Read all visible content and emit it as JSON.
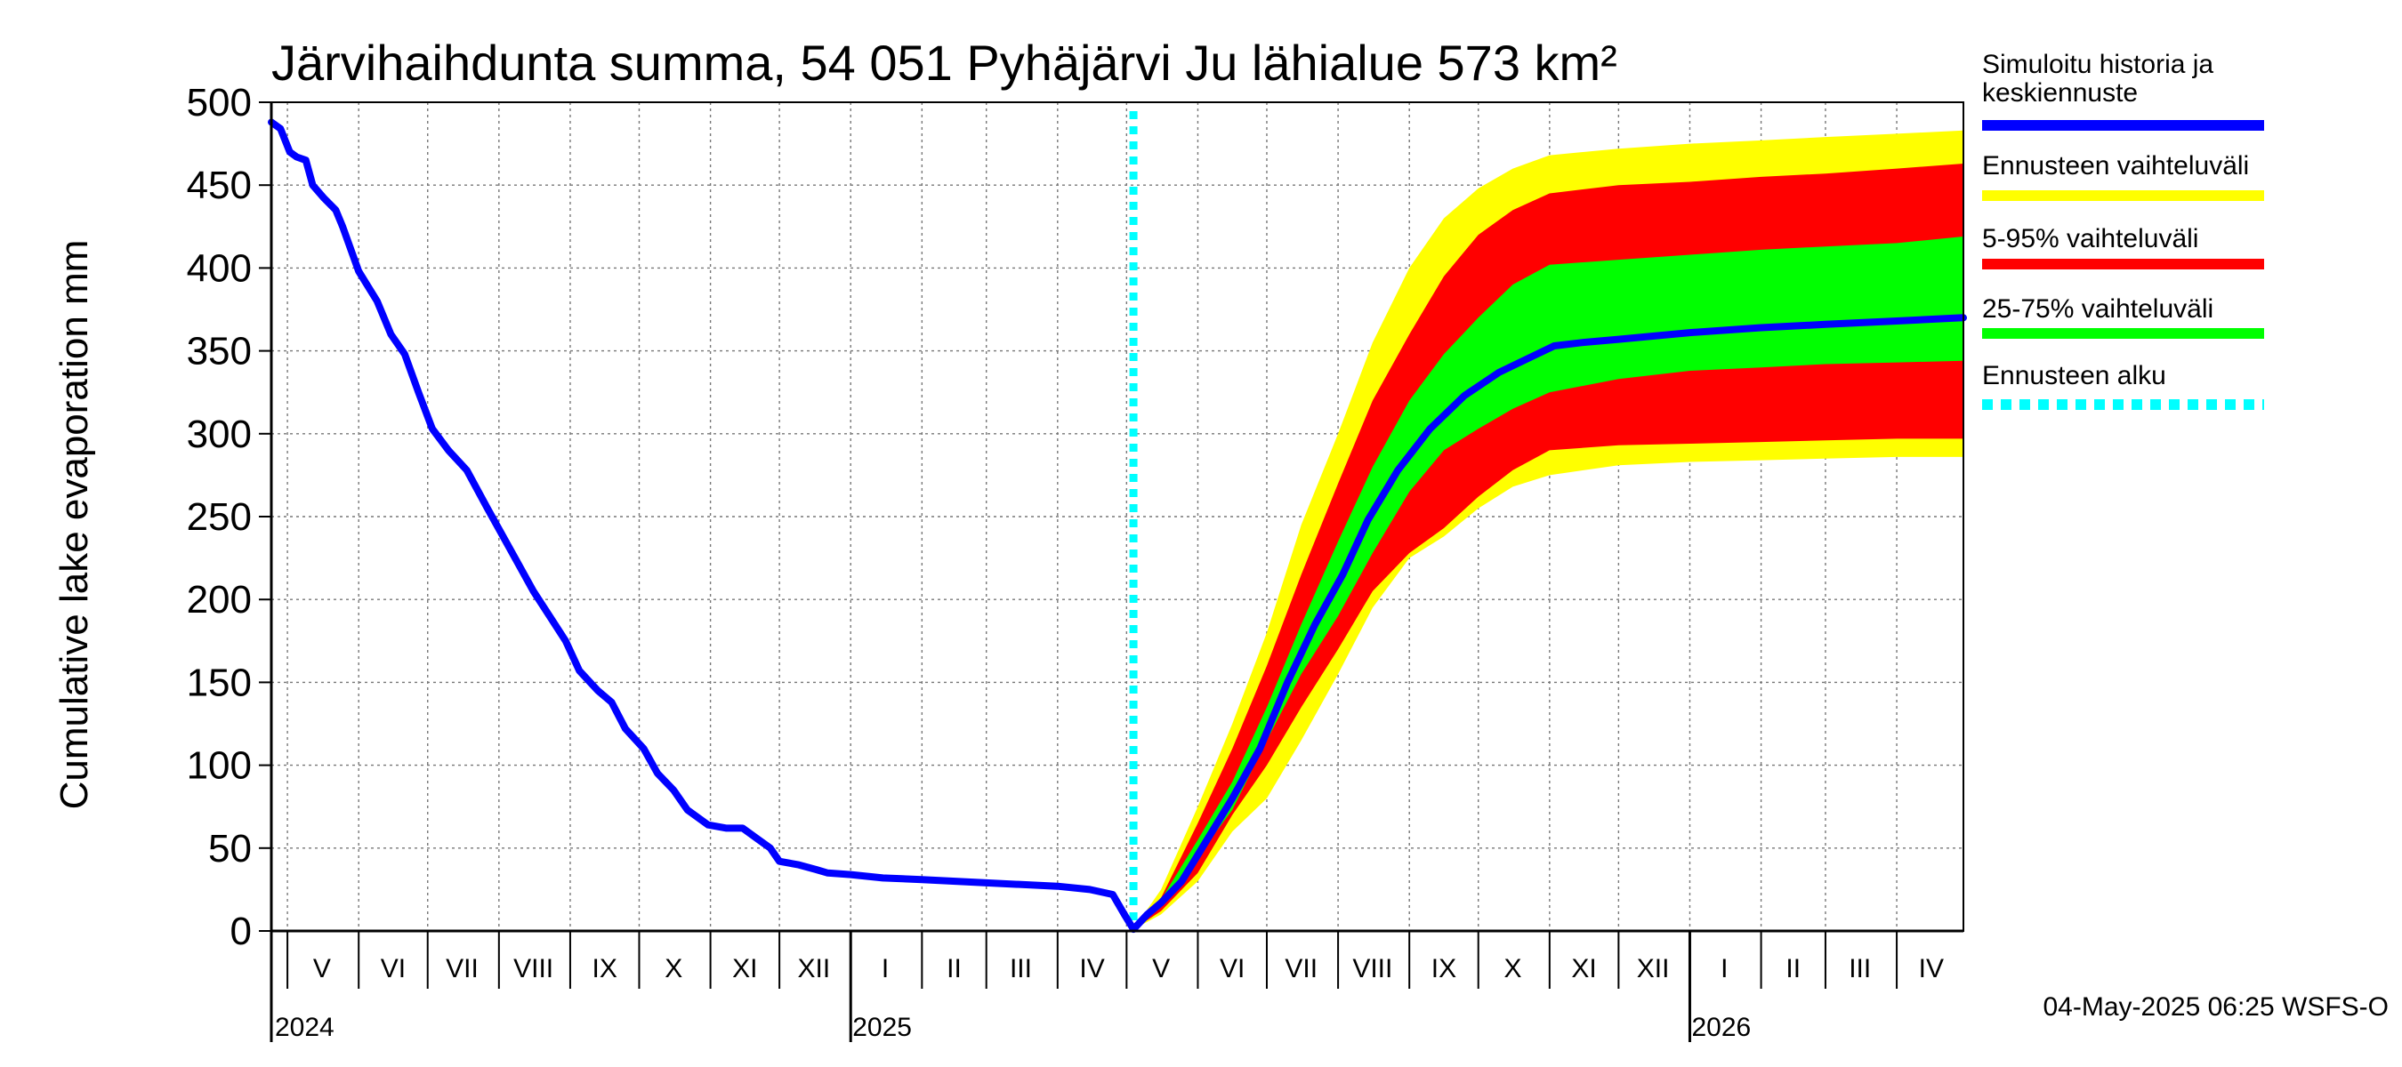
{
  "chart_data": {
    "type": "area",
    "title": "Järvihaihdunta summa, 54 051 Pyhäjärvi Ju lähialue 573 km²",
    "ylabel": "Cumulative lake evaporation   mm",
    "ylim": [
      0,
      500
    ],
    "yticks": [
      0,
      50,
      100,
      150,
      200,
      250,
      300,
      350,
      400,
      450,
      500
    ],
    "xlim": [
      "2024-04-24",
      "2026-04-30"
    ],
    "grid": true,
    "legend_position": "right",
    "month_labels": [
      {
        "date": "2024-05-16",
        "label": "V"
      },
      {
        "date": "2024-06-16",
        "label": "VI"
      },
      {
        "date": "2024-07-16",
        "label": "VII"
      },
      {
        "date": "2024-08-16",
        "label": "VIII"
      },
      {
        "date": "2024-09-16",
        "label": "IX"
      },
      {
        "date": "2024-10-16",
        "label": "X"
      },
      {
        "date": "2024-11-16",
        "label": "XI"
      },
      {
        "date": "2024-12-16",
        "label": "XII"
      },
      {
        "date": "2025-01-16",
        "label": "I"
      },
      {
        "date": "2025-02-15",
        "label": "II"
      },
      {
        "date": "2025-03-16",
        "label": "III"
      },
      {
        "date": "2025-04-16",
        "label": "IV"
      },
      {
        "date": "2025-05-16",
        "label": "V"
      },
      {
        "date": "2025-06-16",
        "label": "VI"
      },
      {
        "date": "2025-07-16",
        "label": "VII"
      },
      {
        "date": "2025-08-16",
        "label": "VIII"
      },
      {
        "date": "2025-09-16",
        "label": "IX"
      },
      {
        "date": "2025-10-16",
        "label": "X"
      },
      {
        "date": "2025-11-16",
        "label": "XI"
      },
      {
        "date": "2025-12-16",
        "label": "XII"
      },
      {
        "date": "2026-01-16",
        "label": "I"
      },
      {
        "date": "2026-02-15",
        "label": "II"
      },
      {
        "date": "2026-03-16",
        "label": "III"
      },
      {
        "date": "2026-04-16",
        "label": "IV"
      }
    ],
    "month_boundaries": [
      "2024-05-01",
      "2024-06-01",
      "2024-07-01",
      "2024-08-01",
      "2024-09-01",
      "2024-10-01",
      "2024-11-01",
      "2024-12-01",
      "2025-01-01",
      "2025-02-01",
      "2025-03-01",
      "2025-04-01",
      "2025-05-01",
      "2025-06-01",
      "2025-07-01",
      "2025-08-01",
      "2025-09-01",
      "2025-10-01",
      "2025-11-01",
      "2025-12-01",
      "2026-01-01",
      "2026-02-01",
      "2026-03-01",
      "2026-04-01"
    ],
    "year_boundaries": [
      "2025-01-01",
      "2026-01-01"
    ],
    "year_labels": [
      {
        "date": "2024-05-01",
        "label": "2024"
      },
      {
        "date": "2025-01-01",
        "label": "2025"
      },
      {
        "date": "2026-01-01",
        "label": "2026"
      }
    ],
    "forecast_start": "2025-05-04",
    "series": [
      {
        "name": "Simuloitu historia ja keskiennuste",
        "kind": "line",
        "color": "#0000ff",
        "points": [
          [
            "2024-04-24",
            488
          ],
          [
            "2024-04-28",
            484
          ],
          [
            "2024-05-02",
            470
          ],
          [
            "2024-05-05",
            467
          ],
          [
            "2024-05-09",
            465
          ],
          [
            "2024-05-12",
            450
          ],
          [
            "2024-05-17",
            442
          ],
          [
            "2024-05-22",
            435
          ],
          [
            "2024-05-25",
            425
          ],
          [
            "2024-06-01",
            398
          ],
          [
            "2024-06-09",
            380
          ],
          [
            "2024-06-15",
            360
          ],
          [
            "2024-06-21",
            348
          ],
          [
            "2024-06-27",
            325
          ],
          [
            "2024-07-03",
            303
          ],
          [
            "2024-07-10",
            290
          ],
          [
            "2024-07-18",
            278
          ],
          [
            "2024-07-27",
            255
          ],
          [
            "2024-08-06",
            230
          ],
          [
            "2024-08-16",
            205
          ],
          [
            "2024-08-23",
            190
          ],
          [
            "2024-08-30",
            175
          ],
          [
            "2024-09-05",
            157
          ],
          [
            "2024-09-13",
            145
          ],
          [
            "2024-09-19",
            138
          ],
          [
            "2024-09-25",
            122
          ],
          [
            "2024-10-03",
            110
          ],
          [
            "2024-10-09",
            95
          ],
          [
            "2024-10-16",
            85
          ],
          [
            "2024-10-22",
            73
          ],
          [
            "2024-10-31",
            64
          ],
          [
            "2024-11-08",
            62
          ],
          [
            "2024-11-15",
            62
          ],
          [
            "2024-11-22",
            55
          ],
          [
            "2024-11-27",
            50
          ],
          [
            "2024-12-01",
            42
          ],
          [
            "2024-12-09",
            40
          ],
          [
            "2024-12-17",
            37
          ],
          [
            "2024-12-22",
            35
          ],
          [
            "2025-01-01",
            34
          ],
          [
            "2025-01-15",
            32
          ],
          [
            "2025-02-01",
            31
          ],
          [
            "2025-03-01",
            29
          ],
          [
            "2025-04-01",
            27
          ],
          [
            "2025-04-15",
            25
          ],
          [
            "2025-04-25",
            22
          ],
          [
            "2025-04-30",
            10
          ],
          [
            "2025-05-04",
            1
          ],
          [
            "2025-05-10",
            10
          ],
          [
            "2025-05-16",
            17
          ],
          [
            "2025-05-25",
            30
          ],
          [
            "2025-06-05",
            55
          ],
          [
            "2025-06-16",
            80
          ],
          [
            "2025-06-28",
            110
          ],
          [
            "2025-07-10",
            150
          ],
          [
            "2025-07-22",
            185
          ],
          [
            "2025-08-03",
            215
          ],
          [
            "2025-08-14",
            248
          ],
          [
            "2025-08-27",
            278
          ],
          [
            "2025-09-10",
            303
          ],
          [
            "2025-09-25",
            323
          ],
          [
            "2025-10-10",
            337
          ],
          [
            "2025-10-25",
            347
          ],
          [
            "2025-11-03",
            353
          ],
          [
            "2025-11-15",
            355
          ],
          [
            "2025-12-01",
            357
          ],
          [
            "2026-01-01",
            361
          ],
          [
            "2026-02-01",
            364
          ],
          [
            "2026-03-01",
            366
          ],
          [
            "2026-04-01",
            368
          ],
          [
            "2026-04-30",
            370
          ]
        ]
      },
      {
        "name": "Ennusteen vaihteluväli",
        "kind": "band",
        "color": "#ffff00",
        "points": [
          [
            "2025-05-04",
            1,
            1
          ],
          [
            "2025-05-16",
            10,
            25
          ],
          [
            "2025-06-01",
            30,
            75
          ],
          [
            "2025-06-16",
            60,
            125
          ],
          [
            "2025-07-01",
            80,
            180
          ],
          [
            "2025-07-16",
            115,
            245
          ],
          [
            "2025-08-01",
            155,
            300
          ],
          [
            "2025-08-16",
            195,
            355
          ],
          [
            "2025-09-01",
            225,
            400
          ],
          [
            "2025-09-16",
            238,
            430
          ],
          [
            "2025-10-01",
            255,
            448
          ],
          [
            "2025-10-16",
            268,
            460
          ],
          [
            "2025-11-01",
            275,
            468
          ],
          [
            "2025-12-01",
            281,
            472
          ],
          [
            "2026-01-01",
            283,
            475
          ],
          [
            "2026-02-01",
            284,
            477
          ],
          [
            "2026-03-01",
            285,
            479
          ],
          [
            "2026-04-01",
            286,
            481
          ],
          [
            "2026-04-30",
            286,
            483
          ]
        ]
      },
      {
        "name": "5-95% vaihteluväli",
        "kind": "band",
        "color": "#ff0000",
        "points": [
          [
            "2025-05-04",
            1,
            1
          ],
          [
            "2025-05-16",
            12,
            20
          ],
          [
            "2025-06-01",
            35,
            65
          ],
          [
            "2025-06-16",
            70,
            110
          ],
          [
            "2025-07-01",
            100,
            160
          ],
          [
            "2025-07-16",
            135,
            215
          ],
          [
            "2025-08-01",
            170,
            270
          ],
          [
            "2025-08-16",
            205,
            320
          ],
          [
            "2025-09-01",
            228,
            360
          ],
          [
            "2025-09-16",
            243,
            395
          ],
          [
            "2025-10-01",
            262,
            420
          ],
          [
            "2025-10-16",
            278,
            435
          ],
          [
            "2025-11-01",
            290,
            445
          ],
          [
            "2025-12-01",
            293,
            450
          ],
          [
            "2026-01-01",
            294,
            452
          ],
          [
            "2026-02-01",
            295,
            455
          ],
          [
            "2026-03-01",
            296,
            457
          ],
          [
            "2026-04-01",
            297,
            460
          ],
          [
            "2026-04-30",
            297,
            463
          ]
        ]
      },
      {
        "name": "25-75% vaihteluväli",
        "kind": "band",
        "color": "#00ff00",
        "points": [
          [
            "2025-05-04",
            1,
            1
          ],
          [
            "2025-05-16",
            15,
            19
          ],
          [
            "2025-06-01",
            45,
            55
          ],
          [
            "2025-06-16",
            73,
            90
          ],
          [
            "2025-07-01",
            115,
            135
          ],
          [
            "2025-07-16",
            155,
            185
          ],
          [
            "2025-08-01",
            190,
            235
          ],
          [
            "2025-08-16",
            228,
            280
          ],
          [
            "2025-09-01",
            265,
            320
          ],
          [
            "2025-09-16",
            290,
            348
          ],
          [
            "2025-10-01",
            303,
            370
          ],
          [
            "2025-10-16",
            315,
            390
          ],
          [
            "2025-11-01",
            325,
            402
          ],
          [
            "2025-12-01",
            333,
            405
          ],
          [
            "2026-01-01",
            338,
            408
          ],
          [
            "2026-02-01",
            340,
            411
          ],
          [
            "2026-03-01",
            342,
            413
          ],
          [
            "2026-04-01",
            343,
            415
          ],
          [
            "2026-04-30",
            344,
            419
          ]
        ]
      }
    ]
  },
  "legend": [
    {
      "label": "Simuloitu historia ja keskiennuste",
      "color": "#0000ff",
      "style": "solid"
    },
    {
      "label": "Ennusteen vaihteluväli",
      "color": "#ffff00",
      "style": "solid"
    },
    {
      "label": "5-95% vaihteluväli",
      "color": "#ff0000",
      "style": "solid"
    },
    {
      "label": "25-75% vaihteluväli",
      "color": "#00ff00",
      "style": "solid"
    },
    {
      "label": "Ennusteen alku",
      "color": "#00ffff",
      "style": "dotted"
    }
  ],
  "footer": "04-May-2025 06:25 WSFS-O"
}
